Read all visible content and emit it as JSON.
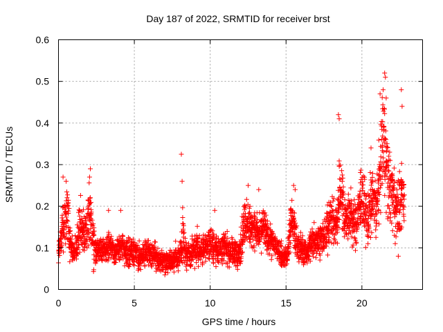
{
  "chart_data": {
    "type": "scatter",
    "title": "Day 187 of 2022, SRMTID for receiver brst",
    "xlabel": "GPS time / hours",
    "ylabel": "SRMTID / TECUs",
    "xlim": [
      0,
      24
    ],
    "ylim": [
      0,
      0.6
    ],
    "xticks": [
      0,
      5,
      10,
      15,
      20
    ],
    "xtick_labels": [
      "0",
      "5",
      "10",
      "15",
      "20"
    ],
    "yticks": [
      0,
      0.1,
      0.2,
      0.3,
      0.4,
      0.5,
      0.6
    ],
    "ytick_labels": [
      "0",
      "0.1",
      "0.2",
      "0.3",
      "0.4",
      "0.5",
      "0.6"
    ],
    "grid": true,
    "marker": "+",
    "color": "#ff0000",
    "series": [
      {
        "name": "SRMTID",
        "x": [
          0.0,
          0.1,
          0.2,
          0.3,
          0.4,
          0.5,
          0.6,
          0.7,
          0.8,
          0.9,
          1.0,
          1.1,
          1.2,
          1.3,
          1.4,
          1.5,
          1.6,
          1.7,
          1.8,
          1.9,
          2.0,
          2.1,
          2.2,
          2.3,
          2.4,
          2.5,
          2.6,
          2.7,
          2.8,
          2.9,
          3.0,
          3.1,
          3.2,
          3.3,
          3.4,
          3.5,
          3.6,
          3.7,
          3.8,
          3.9,
          4.0,
          4.1,
          4.2,
          4.3,
          4.4,
          4.5,
          4.6,
          4.7,
          4.8,
          4.9,
          5.0,
          5.1,
          5.2,
          5.3,
          5.4,
          5.5,
          5.6,
          5.7,
          5.8,
          5.9,
          6.0,
          6.1,
          6.2,
          6.3,
          6.4,
          6.5,
          6.6,
          6.7,
          6.8,
          6.9,
          7.0,
          7.1,
          7.2,
          7.3,
          7.4,
          7.5,
          7.6,
          7.7,
          7.8,
          7.9,
          8.0,
          8.1,
          8.2,
          8.3,
          8.4,
          8.5,
          8.6,
          8.7,
          8.8,
          8.9,
          9.0,
          9.1,
          9.2,
          9.3,
          9.4,
          9.5,
          9.6,
          9.7,
          9.8,
          9.9,
          10.0,
          10.1,
          10.2,
          10.3,
          10.4,
          10.5,
          10.6,
          10.7,
          10.8,
          10.9,
          11.0,
          11.1,
          11.2,
          11.3,
          11.4,
          11.5,
          11.6,
          11.7,
          11.8,
          11.9,
          12.0,
          12.1,
          12.2,
          12.3,
          12.4,
          12.5,
          12.6,
          12.7,
          12.8,
          12.9,
          13.0,
          13.1,
          13.2,
          13.3,
          13.4,
          13.5,
          13.6,
          13.7,
          13.8,
          13.9,
          14.0,
          14.1,
          14.2,
          14.3,
          14.4,
          14.5,
          14.6,
          14.7,
          14.8,
          14.9,
          15.0,
          15.1,
          15.2,
          15.3,
          15.4,
          15.5,
          15.6,
          15.7,
          15.8,
          15.9,
          16.0,
          16.1,
          16.2,
          16.3,
          16.4,
          16.5,
          16.6,
          16.7,
          16.8,
          16.9,
          17.0,
          17.1,
          17.2,
          17.3,
          17.4,
          17.5,
          17.6,
          17.7,
          17.8,
          17.9,
          18.0,
          18.1,
          18.2,
          18.3,
          18.4,
          18.5,
          18.6,
          18.7,
          18.8,
          18.9,
          19.0,
          19.1,
          19.2,
          19.3,
          19.4,
          19.5,
          19.6,
          19.7,
          19.8,
          19.9,
          20.0,
          20.1,
          20.2,
          20.3,
          20.4,
          20.5,
          20.6,
          20.7,
          20.8,
          20.9,
          21.0,
          21.1,
          21.2,
          21.3,
          21.4,
          21.5,
          21.6,
          21.7,
          21.8,
          21.9,
          22.0,
          22.1,
          22.2,
          22.3,
          22.4,
          22.5,
          22.6,
          22.7
        ],
        "y_center": [
          0.1,
          0.13,
          0.15,
          0.16,
          0.18,
          0.19,
          0.17,
          0.12,
          0.1,
          0.09,
          0.09,
          0.1,
          0.12,
          0.14,
          0.15,
          0.15,
          0.14,
          0.13,
          0.14,
          0.17,
          0.19,
          0.17,
          0.13,
          0.1,
          0.09,
          0.09,
          0.09,
          0.1,
          0.1,
          0.1,
          0.1,
          0.1,
          0.1,
          0.11,
          0.11,
          0.1,
          0.09,
          0.09,
          0.09,
          0.09,
          0.1,
          0.1,
          0.1,
          0.09,
          0.09,
          0.09,
          0.09,
          0.09,
          0.09,
          0.09,
          0.09,
          0.09,
          0.08,
          0.08,
          0.08,
          0.08,
          0.08,
          0.09,
          0.09,
          0.09,
          0.08,
          0.08,
          0.08,
          0.08,
          0.07,
          0.07,
          0.07,
          0.07,
          0.07,
          0.07,
          0.07,
          0.07,
          0.07,
          0.07,
          0.07,
          0.07,
          0.07,
          0.08,
          0.08,
          0.08,
          0.1,
          0.12,
          0.11,
          0.09,
          0.08,
          0.08,
          0.08,
          0.08,
          0.09,
          0.1,
          0.1,
          0.1,
          0.09,
          0.09,
          0.09,
          0.1,
          0.1,
          0.1,
          0.11,
          0.11,
          0.11,
          0.1,
          0.1,
          0.1,
          0.1,
          0.1,
          0.1,
          0.1,
          0.1,
          0.1,
          0.1,
          0.1,
          0.09,
          0.09,
          0.09,
          0.09,
          0.09,
          0.08,
          0.08,
          0.09,
          0.11,
          0.14,
          0.16,
          0.17,
          0.17,
          0.16,
          0.15,
          0.14,
          0.15,
          0.15,
          0.14,
          0.13,
          0.13,
          0.14,
          0.15,
          0.15,
          0.14,
          0.13,
          0.12,
          0.12,
          0.11,
          0.11,
          0.11,
          0.1,
          0.1,
          0.09,
          0.09,
          0.08,
          0.08,
          0.08,
          0.08,
          0.1,
          0.14,
          0.17,
          0.16,
          0.14,
          0.12,
          0.11,
          0.1,
          0.1,
          0.1,
          0.09,
          0.09,
          0.09,
          0.09,
          0.1,
          0.11,
          0.12,
          0.12,
          0.12,
          0.12,
          0.12,
          0.12,
          0.12,
          0.12,
          0.13,
          0.14,
          0.15,
          0.16,
          0.17,
          0.17,
          0.16,
          0.15,
          0.16,
          0.2,
          0.24,
          0.24,
          0.21,
          0.18,
          0.17,
          0.17,
          0.18,
          0.18,
          0.17,
          0.16,
          0.15,
          0.16,
          0.18,
          0.2,
          0.22,
          0.22,
          0.2,
          0.18,
          0.17,
          0.18,
          0.2,
          0.21,
          0.22,
          0.2,
          0.19,
          0.22,
          0.26,
          0.3,
          0.34,
          0.37,
          0.33,
          0.28,
          0.25,
          0.24,
          0.24,
          0.23,
          0.22,
          0.2,
          0.2,
          0.2,
          0.2,
          0.21,
          0.22
        ],
        "y_spread": [
          0.03,
          0.04,
          0.05,
          0.06,
          0.07,
          0.07,
          0.06,
          0.04,
          0.03,
          0.03,
          0.03,
          0.03,
          0.04,
          0.05,
          0.05,
          0.05,
          0.05,
          0.04,
          0.05,
          0.06,
          0.07,
          0.06,
          0.05,
          0.04,
          0.03,
          0.03,
          0.03,
          0.03,
          0.03,
          0.03,
          0.03,
          0.03,
          0.03,
          0.03,
          0.03,
          0.03,
          0.03,
          0.03,
          0.03,
          0.03,
          0.03,
          0.03,
          0.03,
          0.03,
          0.03,
          0.03,
          0.03,
          0.03,
          0.03,
          0.03,
          0.03,
          0.03,
          0.03,
          0.03,
          0.03,
          0.03,
          0.03,
          0.03,
          0.03,
          0.03,
          0.03,
          0.03,
          0.03,
          0.03,
          0.025,
          0.025,
          0.025,
          0.025,
          0.025,
          0.025,
          0.025,
          0.025,
          0.025,
          0.025,
          0.025,
          0.025,
          0.025,
          0.03,
          0.03,
          0.03,
          0.04,
          0.06,
          0.05,
          0.03,
          0.03,
          0.03,
          0.03,
          0.03,
          0.03,
          0.035,
          0.035,
          0.035,
          0.03,
          0.03,
          0.03,
          0.035,
          0.035,
          0.035,
          0.035,
          0.035,
          0.035,
          0.035,
          0.035,
          0.035,
          0.035,
          0.035,
          0.035,
          0.035,
          0.035,
          0.035,
          0.035,
          0.035,
          0.03,
          0.03,
          0.03,
          0.03,
          0.03,
          0.03,
          0.03,
          0.03,
          0.04,
          0.05,
          0.05,
          0.05,
          0.05,
          0.05,
          0.05,
          0.04,
          0.04,
          0.04,
          0.04,
          0.04,
          0.04,
          0.04,
          0.04,
          0.04,
          0.04,
          0.04,
          0.04,
          0.04,
          0.035,
          0.035,
          0.035,
          0.03,
          0.03,
          0.03,
          0.03,
          0.025,
          0.025,
          0.025,
          0.025,
          0.035,
          0.05,
          0.05,
          0.05,
          0.05,
          0.04,
          0.04,
          0.035,
          0.035,
          0.035,
          0.03,
          0.03,
          0.03,
          0.03,
          0.035,
          0.04,
          0.04,
          0.04,
          0.04,
          0.04,
          0.04,
          0.04,
          0.04,
          0.04,
          0.045,
          0.05,
          0.05,
          0.05,
          0.05,
          0.05,
          0.05,
          0.05,
          0.05,
          0.07,
          0.08,
          0.08,
          0.07,
          0.06,
          0.05,
          0.05,
          0.06,
          0.06,
          0.06,
          0.05,
          0.05,
          0.05,
          0.06,
          0.07,
          0.07,
          0.07,
          0.07,
          0.06,
          0.06,
          0.06,
          0.07,
          0.07,
          0.07,
          0.07,
          0.07,
          0.08,
          0.09,
          0.1,
          0.11,
          0.12,
          0.11,
          0.1,
          0.09,
          0.08,
          0.08,
          0.08,
          0.08,
          0.07,
          0.07,
          0.07,
          0.07,
          0.07,
          0.08
        ],
        "outliers": [
          [
            0.3,
            0.27
          ],
          [
            0.5,
            0.26
          ],
          [
            2.1,
            0.29
          ],
          [
            2.05,
            0.27
          ],
          [
            8.1,
            0.325
          ],
          [
            8.15,
            0.26
          ],
          [
            18.45,
            0.42
          ],
          [
            18.5,
            0.41
          ],
          [
            20.6,
            0.34
          ],
          [
            21.5,
            0.52
          ],
          [
            21.55,
            0.51
          ],
          [
            21.4,
            0.48
          ],
          [
            21.6,
            0.46
          ],
          [
            21.2,
            0.47
          ],
          [
            22.6,
            0.48
          ],
          [
            22.65,
            0.44
          ],
          [
            12.5,
            0.25
          ],
          [
            15.5,
            0.25
          ],
          [
            15.6,
            0.24
          ],
          [
            4.1,
            0.19
          ],
          [
            3.3,
            0.19
          ],
          [
            10.3,
            0.19
          ],
          [
            13.2,
            0.24
          ],
          [
            22.4,
            0.08
          ],
          [
            22.2,
            0.11
          ]
        ]
      }
    ]
  }
}
